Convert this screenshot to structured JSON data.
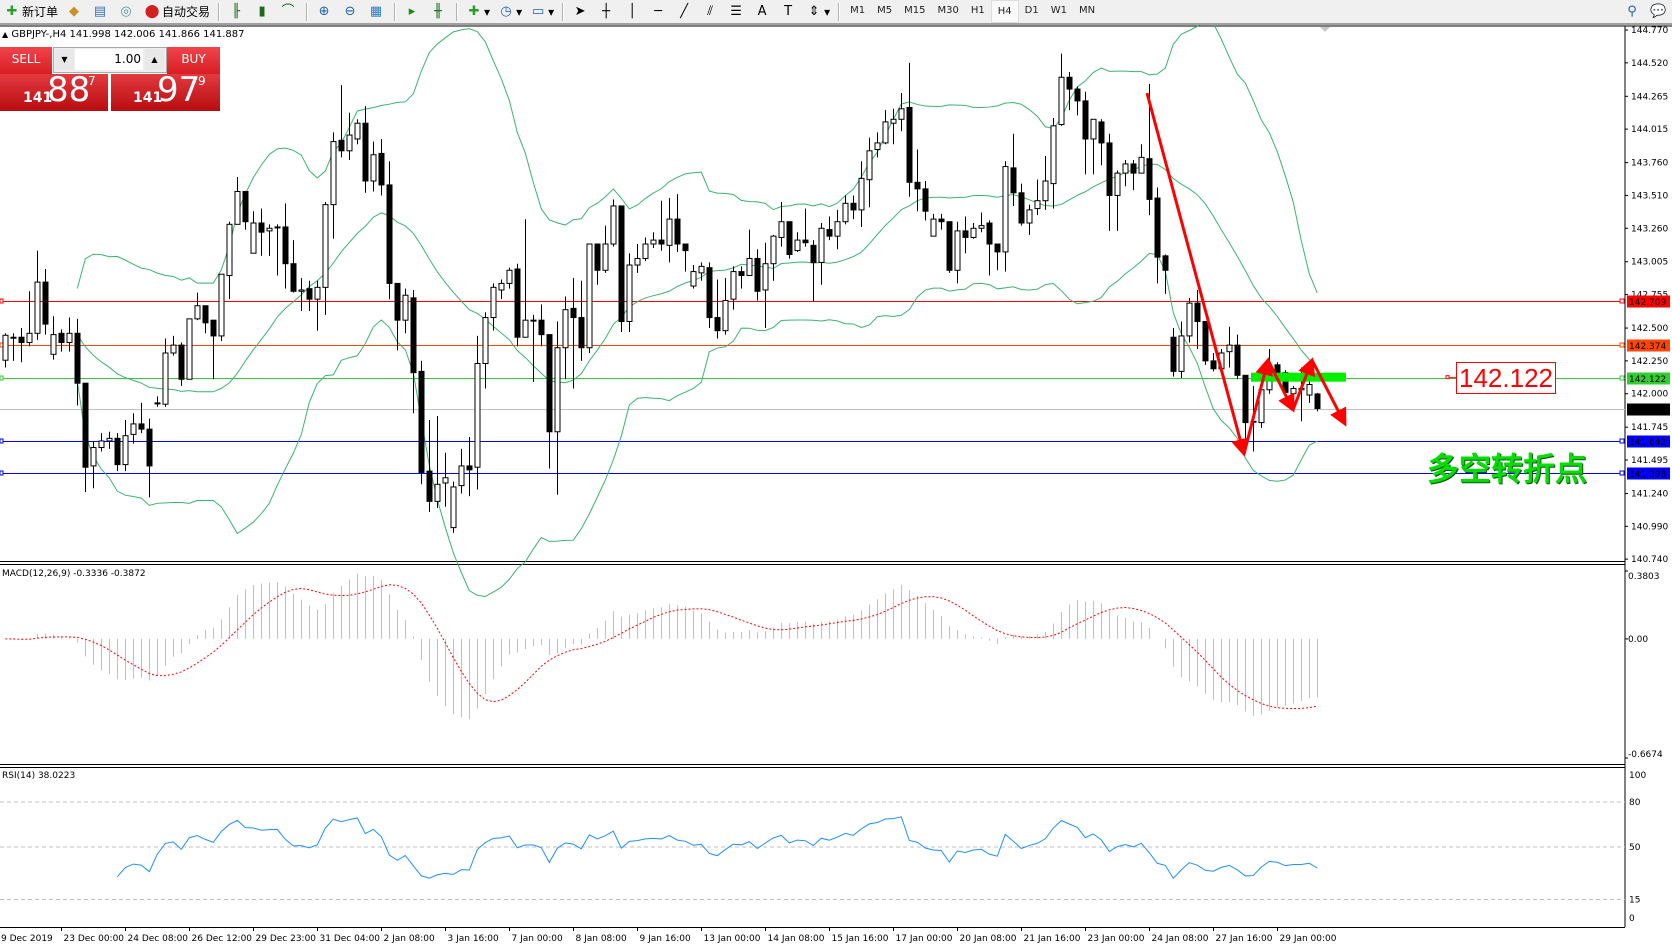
{
  "toolbar": {
    "new_order": "新订单",
    "auto_trading": "自动交易",
    "timeframes": [
      "M1",
      "M5",
      "M15",
      "M30",
      "H1",
      "H4",
      "D1",
      "W1",
      "MN"
    ],
    "active_timeframe": "H4",
    "icons": [
      "new-order-icon",
      "history-icon",
      "market-watch-icon",
      "signals-icon",
      "auto-trading-icon",
      "bar-chart-icon",
      "candlestick-icon",
      "line-chart-icon",
      "zoom-in-icon",
      "zoom-out-icon",
      "tile-windows-icon",
      "chart-shift-icon",
      "autoscroll-icon",
      "indicators-icon",
      "periods-icon",
      "templates-icon",
      "cursor-icon",
      "crosshair-icon",
      "vertical-line-icon",
      "horizontal-line-icon",
      "trendline-icon",
      "fibonacci-fan-icon",
      "fibonacci-icon",
      "text-icon",
      "label-icon",
      "arrows-icon",
      "search-icon",
      "chat-icon"
    ]
  },
  "symbol_header": "GBPJPY-,H4  141.998 142.006 141.866 141.887",
  "trade_panel": {
    "sell_label": "SELL",
    "buy_label": "BUY",
    "lot": "1.00",
    "sell_price": {
      "prefix": "141",
      "big": "88",
      "sup": "7"
    },
    "buy_price": {
      "prefix": "141",
      "big": "97",
      "sup": "9"
    }
  },
  "price_axis": [
    "144.770",
    "144.520",
    "144.265",
    "144.015",
    "143.760",
    "143.510",
    "143.260",
    "143.005",
    "142.755",
    "142.500",
    "142.250",
    "142.000",
    "141.745",
    "141.495",
    "141.240",
    "140.990",
    "140.740"
  ],
  "levels": [
    {
      "price": "142.709",
      "color": "#ff0000"
    },
    {
      "price": "142.374",
      "color": "#ff4500"
    },
    {
      "price": "142.122",
      "color": "#32cd32"
    },
    {
      "price": "141.887",
      "color": "#000000",
      "line": "#c0c0c0"
    },
    {
      "price": "141.642",
      "color": "#0000ff"
    },
    {
      "price": "141.398",
      "color": "#0000ff"
    }
  ],
  "annotations": {
    "price_label": "142.122",
    "text": "多空转折点",
    "arrow_color": "#ff0000",
    "box_color": "#00ee00"
  },
  "macd": {
    "label": "MACD(12,26,9) -0.3336 -0.3872",
    "axis": [
      "0.3803",
      "0.00",
      "-0.6674"
    ]
  },
  "rsi": {
    "label": "RSI(14) 38.0223",
    "axis": [
      "100",
      "80",
      "50",
      "15",
      "0"
    ]
  },
  "time_axis": [
    "9 Dec 2019",
    "23 Dec 00:00",
    "24 Dec 08:00",
    "26 Dec 12:00",
    "29 Dec 23:00",
    "31 Dec 04:00",
    "2 Jan 08:00",
    "3 Jan 16:00",
    "7 Jan 00:00",
    "8 Jan 08:00",
    "9 Jan 16:00",
    "13 Jan 00:00",
    "14 Jan 08:00",
    "15 Jan 16:00",
    "17 Jan 00:00",
    "20 Jan 08:00",
    "21 Jan 16:00",
    "23 Jan 00:00",
    "24 Jan 08:00",
    "27 Jan 16:00",
    "29 Jan 00:00"
  ],
  "chart_data": {
    "type": "candlestick",
    "symbol": "GBPJPY-",
    "timeframe": "H4",
    "ylim": [
      140.74,
      144.77
    ],
    "ohlc_order": [
      "open",
      "high",
      "low",
      "close"
    ],
    "indicators": [
      "Bollinger Bands",
      "MACD(12,26,9)",
      "RSI(14)"
    ],
    "candles": [
      [
        142.255,
        142.46,
        142.2,
        142.445
      ],
      [
        142.43,
        142.46,
        142.25,
        142.43
      ],
      [
        142.43,
        142.5,
        142.24,
        142.39
      ],
      [
        142.39,
        142.78,
        142.36,
        142.46
      ],
      [
        142.46,
        143.09,
        142.41,
        142.85
      ],
      [
        142.85,
        142.95,
        142.45,
        142.53
      ],
      [
        142.3,
        142.59,
        142.26,
        142.45
      ],
      [
        142.46,
        142.49,
        142.32,
        142.39
      ],
      [
        142.39,
        142.58,
        142.32,
        142.46
      ],
      [
        142.46,
        142.57,
        141.91,
        142.08
      ],
      [
        142.08,
        142.08,
        141.25,
        141.44
      ],
      [
        141.45,
        141.64,
        141.28,
        141.59
      ],
      [
        141.59,
        141.7,
        141.56,
        141.64
      ],
      [
        141.64,
        141.71,
        141.58,
        141.66
      ],
      [
        141.66,
        141.7,
        141.41,
        141.46
      ],
      [
        141.46,
        141.8,
        141.41,
        141.68
      ],
      [
        141.69,
        141.85,
        141.62,
        141.77
      ],
      [
        141.77,
        141.93,
        141.7,
        141.73
      ],
      [
        141.73,
        141.81,
        141.21,
        141.45
      ],
      [
        141.93,
        141.98,
        141.9,
        141.93
      ],
      [
        141.92,
        142.42,
        141.9,
        142.31
      ],
      [
        142.31,
        142.44,
        142.29,
        142.37
      ],
      [
        142.37,
        142.39,
        142.06,
        142.11
      ],
      [
        142.11,
        142.57,
        142.11,
        142.57
      ],
      [
        142.57,
        142.77,
        142.56,
        142.67
      ],
      [
        142.67,
        142.67,
        142.46,
        142.54
      ],
      [
        142.56,
        142.56,
        142.11,
        142.44
      ],
      [
        142.44,
        142.91,
        142.4,
        142.91
      ],
      [
        142.9,
        143.31,
        142.72,
        143.29
      ],
      [
        143.29,
        143.65,
        143.29,
        143.54
      ],
      [
        143.54,
        143.54,
        143.25,
        143.31
      ],
      [
        143.07,
        143.39,
        143.07,
        143.3
      ],
      [
        143.3,
        143.41,
        143.05,
        143.23
      ],
      [
        143.24,
        143.29,
        143.05,
        143.26
      ],
      [
        143.27,
        143.29,
        142.9,
        143.27
      ],
      [
        143.27,
        143.45,
        142.8,
        142.99
      ],
      [
        142.99,
        143.17,
        142.77,
        142.78
      ],
      [
        142.78,
        142.88,
        142.63,
        142.79
      ],
      [
        142.8,
        142.86,
        142.63,
        142.72
      ],
      [
        142.72,
        142.86,
        142.48,
        142.81
      ],
      [
        142.81,
        143.46,
        142.6,
        143.44
      ],
      [
        143.44,
        143.99,
        143.18,
        143.92
      ],
      [
        143.93,
        144.35,
        143.8,
        143.85
      ],
      [
        143.85,
        144.14,
        143.78,
        143.97
      ],
      [
        143.94,
        144.09,
        143.9,
        144.06
      ],
      [
        144.06,
        144.19,
        143.53,
        143.62
      ],
      [
        143.62,
        143.92,
        143.54,
        143.82
      ],
      [
        143.83,
        143.94,
        143.51,
        143.59
      ],
      [
        143.59,
        143.77,
        142.72,
        142.84
      ],
      [
        142.84,
        142.84,
        142.33,
        142.56
      ],
      [
        142.56,
        142.8,
        142.46,
        142.75
      ],
      [
        142.73,
        142.79,
        141.85,
        142.16
      ],
      [
        142.17,
        142.25,
        141.31,
        141.4
      ],
      [
        141.41,
        141.8,
        141.1,
        141.18
      ],
      [
        141.18,
        141.83,
        141.13,
        141.31
      ],
      [
        141.32,
        141.55,
        141.14,
        141.36
      ],
      [
        140.98,
        141.33,
        140.94,
        141.29
      ],
      [
        141.3,
        141.58,
        141.24,
        141.45
      ],
      [
        141.45,
        141.67,
        141.22,
        141.42
      ],
      [
        141.44,
        142.44,
        141.27,
        142.23
      ],
      [
        142.23,
        142.62,
        142.04,
        142.58
      ],
      [
        142.58,
        142.84,
        142.48,
        142.81
      ],
      [
        142.79,
        142.87,
        142.72,
        142.84
      ],
      [
        142.84,
        142.96,
        142.8,
        142.94
      ],
      [
        142.95,
        142.99,
        142.36,
        142.43
      ],
      [
        142.43,
        143.33,
        142.43,
        142.56
      ],
      [
        142.56,
        142.6,
        142.09,
        142.56
      ],
      [
        142.56,
        142.68,
        142.36,
        142.45
      ],
      [
        142.45,
        142.45,
        141.43,
        141.71
      ],
      [
        141.71,
        142.55,
        141.23,
        142.35
      ],
      [
        142.35,
        142.74,
        142.11,
        142.64
      ],
      [
        142.65,
        142.88,
        142.04,
        142.58
      ],
      [
        142.58,
        142.86,
        142.25,
        142.35
      ],
      [
        142.35,
        143.14,
        142.31,
        143.14
      ],
      [
        143.14,
        143.14,
        142.83,
        142.94
      ],
      [
        142.94,
        143.28,
        142.92,
        143.14
      ],
      [
        143.14,
        143.48,
        143.12,
        143.43
      ],
      [
        143.43,
        143.43,
        142.47,
        142.55
      ],
      [
        142.55,
        143.07,
        142.47,
        142.98
      ],
      [
        142.98,
        143.14,
        142.92,
        143.03
      ],
      [
        143.03,
        143.19,
        143.01,
        143.14
      ],
      [
        143.14,
        143.23,
        143.11,
        143.17
      ],
      [
        143.17,
        143.47,
        143.09,
        143.14
      ],
      [
        143.13,
        143.49,
        143.0,
        143.33
      ],
      [
        143.33,
        143.52,
        143.08,
        143.14
      ],
      [
        143.14,
        143.14,
        142.93,
        143.09
      ],
      [
        142.82,
        142.98,
        142.8,
        142.93
      ],
      [
        142.92,
        143.0,
        142.86,
        142.97
      ],
      [
        142.96,
        143.0,
        142.5,
        142.58
      ],
      [
        142.58,
        142.87,
        142.42,
        142.48
      ],
      [
        142.48,
        142.88,
        142.45,
        142.71
      ],
      [
        142.72,
        142.97,
        142.64,
        142.93
      ],
      [
        142.93,
        142.97,
        142.8,
        142.9
      ],
      [
        142.9,
        143.25,
        142.9,
        143.03
      ],
      [
        143.03,
        143.1,
        142.71,
        142.78
      ],
      [
        142.79,
        143.15,
        142.5,
        142.99
      ],
      [
        142.99,
        143.21,
        142.86,
        143.2
      ],
      [
        143.19,
        143.46,
        143.12,
        143.31
      ],
      [
        143.31,
        143.31,
        143.03,
        143.06
      ],
      [
        143.09,
        143.23,
        143.08,
        143.17
      ],
      [
        143.17,
        143.41,
        143.12,
        143.15
      ],
      [
        143.13,
        143.17,
        142.7,
        143.0
      ],
      [
        143.0,
        143.3,
        142.83,
        143.26
      ],
      [
        143.25,
        143.35,
        143.17,
        143.2
      ],
      [
        143.2,
        143.4,
        143.1,
        143.31
      ],
      [
        143.31,
        143.51,
        143.29,
        143.45
      ],
      [
        143.45,
        143.51,
        143.33,
        143.4
      ],
      [
        143.4,
        143.77,
        143.27,
        143.64
      ],
      [
        143.63,
        143.95,
        143.42,
        143.85
      ],
      [
        143.86,
        143.99,
        143.8,
        143.91
      ],
      [
        143.91,
        144.16,
        143.9,
        144.07
      ],
      [
        144.06,
        144.17,
        143.9,
        144.09
      ],
      [
        144.09,
        144.29,
        144.0,
        144.17
      ],
      [
        144.18,
        144.52,
        143.5,
        143.61
      ],
      [
        143.61,
        143.86,
        143.39,
        143.56
      ],
      [
        143.56,
        143.62,
        143.32,
        143.39
      ],
      [
        143.2,
        143.37,
        143.2,
        143.33
      ],
      [
        143.33,
        143.37,
        143.25,
        143.31
      ],
      [
        143.31,
        143.31,
        142.92,
        142.94
      ],
      [
        142.94,
        143.31,
        142.84,
        143.24
      ],
      [
        143.24,
        143.35,
        143.07,
        143.19
      ],
      [
        143.19,
        143.3,
        143.18,
        143.26
      ],
      [
        143.26,
        143.38,
        143.23,
        143.28
      ],
      [
        143.3,
        143.32,
        142.9,
        143.14
      ],
      [
        143.14,
        143.14,
        142.94,
        143.08
      ],
      [
        143.08,
        143.77,
        142.93,
        143.73
      ],
      [
        143.72,
        143.98,
        143.43,
        143.53
      ],
      [
        143.53,
        143.6,
        143.28,
        143.3
      ],
      [
        143.3,
        143.44,
        143.21,
        143.4
      ],
      [
        143.41,
        143.63,
        143.36,
        143.47
      ],
      [
        143.47,
        143.81,
        143.4,
        143.62
      ],
      [
        143.6,
        144.1,
        143.41,
        144.04
      ],
      [
        144.05,
        144.59,
        144.04,
        144.41
      ],
      [
        144.41,
        144.45,
        144.16,
        144.32
      ],
      [
        144.32,
        144.34,
        144.12,
        144.23
      ],
      [
        144.23,
        144.3,
        143.67,
        143.94
      ],
      [
        143.94,
        144.09,
        143.67,
        144.09
      ],
      [
        144.07,
        144.09,
        143.74,
        143.91
      ],
      [
        143.91,
        143.98,
        143.24,
        143.51
      ],
      [
        143.51,
        143.7,
        143.24,
        143.68
      ],
      [
        143.68,
        143.78,
        143.58,
        143.75
      ],
      [
        143.75,
        143.78,
        143.55,
        143.68
      ],
      [
        143.68,
        143.9,
        143.68,
        143.8
      ],
      [
        143.79,
        144.36,
        143.36,
        143.48
      ],
      [
        143.49,
        143.57,
        142.84,
        143.04
      ],
      [
        143.05,
        143.06,
        142.76,
        142.94
      ],
      [
        142.43,
        142.5,
        142.13,
        142.17
      ],
      [
        142.17,
        142.55,
        142.12,
        142.44
      ],
      [
        142.44,
        142.73,
        142.39,
        142.69
      ],
      [
        142.69,
        142.79,
        142.34,
        142.55
      ],
      [
        142.55,
        142.55,
        142.22,
        142.25
      ],
      [
        142.25,
        142.31,
        142.17,
        142.19
      ],
      [
        142.19,
        142.34,
        142.19,
        142.31
      ],
      [
        142.32,
        142.51,
        142.2,
        142.37
      ],
      [
        142.37,
        142.45,
        142.11,
        142.14
      ],
      [
        142.14,
        142.14,
        141.58,
        141.78
      ],
      [
        141.79,
        142.06,
        141.56,
        141.79
      ],
      [
        141.78,
        142.16,
        141.74,
        142.03
      ],
      [
        142.03,
        142.34,
        142.0,
        142.2
      ],
      [
        142.22,
        142.24,
        142.12,
        142.16
      ],
      [
        142.16,
        142.18,
        141.91,
        142.01
      ],
      [
        142.0,
        142.06,
        141.93,
        142.04
      ],
      [
        142.03,
        142.2,
        141.79,
        142.04
      ],
      [
        141.99,
        142.12,
        141.93,
        142.07
      ],
      [
        141.998,
        142.006,
        141.866,
        141.887
      ]
    ]
  }
}
